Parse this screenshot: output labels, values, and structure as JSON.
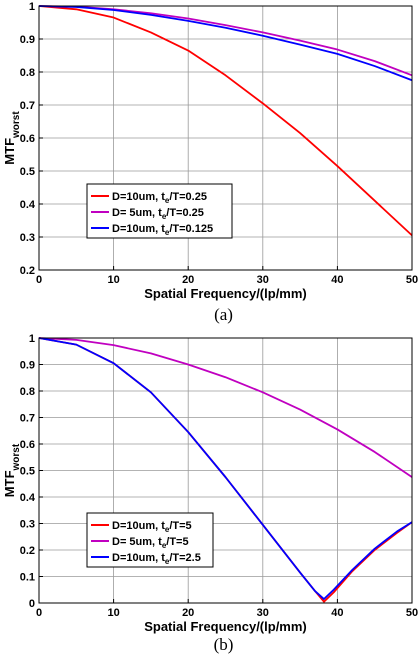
{
  "figure_captions": [
    "(a)",
    "(b)"
  ],
  "chart_data": [
    {
      "type": "line",
      "panel": "(a)",
      "xlabel": "Spatial Frequency/(lp/mm)",
      "ylabel_main": "MTF",
      "ylabel_sub": "worst",
      "xlim": [
        0,
        50
      ],
      "ylim": [
        0.2,
        1
      ],
      "xticks": [
        "0",
        "10",
        "20",
        "30",
        "40",
        "50"
      ],
      "yticks": [
        "0.2",
        "0.3",
        "0.4",
        "0.5",
        "0.6",
        "0.7",
        "0.8",
        "0.9",
        "1"
      ],
      "grid": true,
      "legend_position": "bottom-left",
      "series": [
        {
          "label_main": "D=10um, t",
          "label_sub": "e",
          "label_tail": "/T=0.25",
          "color": "#ff0000",
          "x": [
            0,
            5,
            10,
            15,
            20,
            25,
            30,
            35,
            40,
            45,
            50
          ],
          "y": [
            1.0,
            0.99,
            0.965,
            0.92,
            0.865,
            0.79,
            0.705,
            0.615,
            0.515,
            0.41,
            0.305
          ]
        },
        {
          "label_main": "D=  5um, t",
          "label_sub": "e",
          "label_tail": "/T=0.25",
          "color": "#c000c0",
          "x": [
            0,
            5,
            10,
            15,
            20,
            25,
            30,
            35,
            40,
            45,
            50
          ],
          "y": [
            1.0,
            0.998,
            0.99,
            0.978,
            0.962,
            0.942,
            0.92,
            0.895,
            0.868,
            0.833,
            0.79
          ]
        },
        {
          "label_main": "D=10um, t",
          "label_sub": "e",
          "label_tail": "/T=0.125",
          "color": "#0000ff",
          "x": [
            0,
            5,
            10,
            15,
            20,
            25,
            30,
            35,
            40,
            45,
            50
          ],
          "y": [
            1.0,
            0.997,
            0.988,
            0.973,
            0.955,
            0.934,
            0.91,
            0.883,
            0.855,
            0.818,
            0.775
          ]
        }
      ]
    },
    {
      "type": "line",
      "panel": "(b)",
      "xlabel": "Spatial Frequency/(lp/mm)",
      "ylabel_main": "MTF",
      "ylabel_sub": "worst",
      "xlim": [
        0,
        50
      ],
      "ylim": [
        0,
        1
      ],
      "xticks": [
        "0",
        "10",
        "20",
        "30",
        "40",
        "50"
      ],
      "yticks": [
        "0",
        "0.1",
        "0.2",
        "0.3",
        "0.4",
        "0.5",
        "0.6",
        "0.7",
        "0.8",
        "0.9",
        "1"
      ],
      "grid": true,
      "legend_position": "bottom-left",
      "series": [
        {
          "label_main": "D=10um, t",
          "label_sub": "e",
          "label_tail": "/T=5",
          "color": "#ff0000",
          "x": [
            0,
            5,
            10,
            15,
            20,
            25,
            30,
            35,
            37,
            38.2,
            39.5,
            42,
            45,
            48,
            50
          ],
          "y": [
            1.0,
            0.975,
            0.905,
            0.795,
            0.645,
            0.475,
            0.295,
            0.115,
            0.045,
            0.005,
            0.04,
            0.12,
            0.2,
            0.265,
            0.305
          ]
        },
        {
          "label_main": "D=  5um, t",
          "label_sub": "e",
          "label_tail": "/T=5",
          "color": "#c000c0",
          "x": [
            0,
            5,
            10,
            15,
            20,
            25,
            30,
            35,
            40,
            45,
            50
          ],
          "y": [
            1.0,
            0.993,
            0.973,
            0.942,
            0.9,
            0.852,
            0.795,
            0.73,
            0.655,
            0.57,
            0.475
          ]
        },
        {
          "label_main": "D=10um, t",
          "label_sub": "e",
          "label_tail": "/T=2.5",
          "color": "#0000ff",
          "x": [
            0,
            5,
            10,
            15,
            20,
            25,
            30,
            35,
            37,
            38.2,
            39.5,
            42,
            45,
            48,
            50
          ],
          "y": [
            1.0,
            0.975,
            0.905,
            0.795,
            0.645,
            0.475,
            0.295,
            0.115,
            0.045,
            0.015,
            0.05,
            0.125,
            0.205,
            0.27,
            0.305
          ]
        }
      ]
    }
  ]
}
